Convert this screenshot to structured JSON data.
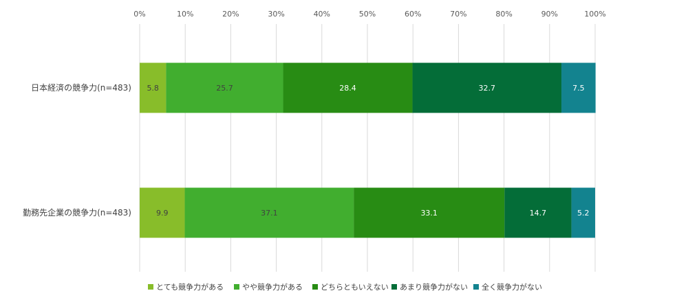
{
  "chart_data": {
    "type": "bar",
    "orientation": "horizontal",
    "stacked": true,
    "title": "",
    "xlabel": "",
    "ylabel": "",
    "xlim": [
      0,
      100
    ],
    "x_ticks": [
      "0%",
      "10%",
      "20%",
      "30%",
      "40%",
      "50%",
      "60%",
      "70%",
      "80%",
      "90%",
      "100%"
    ],
    "categories": [
      "日本経済の競争力(n=483)",
      "勤務先企業の競争力(n=483)"
    ],
    "series": [
      {
        "name": "とても競争力がある",
        "values": [
          5.8,
          9.9
        ],
        "labels": [
          "5.8",
          "9.9"
        ]
      },
      {
        "name": "やや競争力がある",
        "values": [
          25.7,
          37.1
        ],
        "labels": [
          "25.7",
          "37.1"
        ]
      },
      {
        "name": "どちらともいえない",
        "values": [
          28.4,
          33.1
        ],
        "labels": [
          "28.4",
          "33.1"
        ]
      },
      {
        "name": "あまり競争力がない",
        "values": [
          32.7,
          14.7
        ],
        "labels": [
          "32.7",
          "14.7"
        ]
      },
      {
        "name": "全く競争力がない",
        "values": [
          7.5,
          5.2
        ],
        "labels": [
          "7.5",
          "5.2"
        ]
      }
    ],
    "colors": [
      "#88bd2a",
      "#41ae2f",
      "#288c14",
      "#046d38",
      "#13838f"
    ],
    "label_colors": [
      "#404040",
      "#404040",
      "#ffffff",
      "#ffffff",
      "#ffffff"
    ],
    "grid": true,
    "legend_position": "bottom"
  }
}
